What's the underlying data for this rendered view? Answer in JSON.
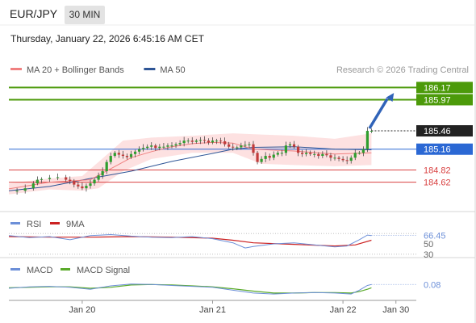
{
  "header": {
    "symbol": "EUR/JPY",
    "timeframe": "30 MIN",
    "datetime": "Thursday, January 22, 2026 6:45:16 AM CET",
    "copyright": "Research © 2026 Trading Central"
  },
  "colors": {
    "ma20": "#f08080",
    "ma50": "#2e5596",
    "candle_up": "#2e9e2e",
    "candle_down": "#c23b3b",
    "band_fill": "#fcd9d9",
    "target_line": "#4c9a0a",
    "pivot_line": "#2b68d4",
    "support_line": "#d94141",
    "arrow": "#3063b8",
    "rsi": "#6c8fd8",
    "rsi_ma": "#cc2222",
    "macd": "#6c8fd8",
    "macd_signal": "#5aaa2a"
  },
  "chart_data": [
    {
      "type": "candlestick",
      "title": "EUR/JPY",
      "legend": [
        {
          "name": "MA 20 + Bollinger Bands",
          "color": "#f08080"
        },
        {
          "name": "MA 50",
          "color": "#2e5596"
        }
      ],
      "ylim": [
        184.35,
        186.32
      ],
      "xlim": [
        0,
        100
      ],
      "x_ticks": [
        {
          "x": 18,
          "label": "Jan 20"
        },
        {
          "x": 50,
          "label": "Jan 21"
        },
        {
          "x": 82,
          "label": "Jan 22"
        },
        {
          "x": 95,
          "label": "Jan 30"
        }
      ],
      "last_close": 185.46,
      "levels": [
        {
          "value": 186.17,
          "label": "186.17",
          "kind": "target",
          "color": "#4c9a0a"
        },
        {
          "value": 185.97,
          "label": "185.97",
          "kind": "target",
          "color": "#4c9a0a"
        },
        {
          "value": 185.46,
          "label": "185.46",
          "kind": "last",
          "color": "#222222"
        },
        {
          "value": 185.16,
          "label": "185.16",
          "kind": "pivot",
          "color": "#2b68d4"
        },
        {
          "value": 184.82,
          "label": "184.82",
          "kind": "support",
          "color": "#d94141"
        },
        {
          "value": 184.62,
          "label": "184.62",
          "kind": "support",
          "color": "#d94141"
        }
      ],
      "arrow": {
        "from": {
          "x": 88.5,
          "y": 185.5
        },
        "to": {
          "x": 94.5,
          "y": 186.08
        }
      },
      "ohlc_close_path": [
        [
          0,
          184.47
        ],
        [
          2,
          184.48
        ],
        [
          4,
          184.52
        ],
        [
          6,
          184.6
        ],
        [
          7,
          184.66
        ],
        [
          8,
          184.67
        ],
        [
          10,
          184.69
        ],
        [
          12,
          184.7
        ],
        [
          14,
          184.66
        ],
        [
          15,
          184.64
        ],
        [
          16,
          184.58
        ],
        [
          17,
          184.55
        ],
        [
          18,
          184.52
        ],
        [
          19,
          184.56
        ],
        [
          20,
          184.6
        ],
        [
          21,
          184.66
        ],
        [
          22,
          184.73
        ],
        [
          23,
          184.8
        ],
        [
          24,
          184.95
        ],
        [
          25,
          185.05
        ],
        [
          26,
          185.1
        ],
        [
          27,
          185.07
        ],
        [
          28,
          185.05
        ],
        [
          29,
          185.03
        ],
        [
          30,
          185.08
        ],
        [
          31,
          185.12
        ],
        [
          32,
          185.16
        ],
        [
          33,
          185.18
        ],
        [
          34,
          185.2
        ],
        [
          35,
          185.22
        ],
        [
          36,
          185.18
        ],
        [
          37,
          185.2
        ],
        [
          38,
          185.2
        ],
        [
          39,
          185.22
        ],
        [
          40,
          185.22
        ],
        [
          41,
          185.24
        ],
        [
          42,
          185.26
        ],
        [
          43,
          185.3
        ],
        [
          44,
          185.3
        ],
        [
          45,
          185.28
        ],
        [
          46,
          185.3
        ],
        [
          47,
          185.31
        ],
        [
          48,
          185.3
        ],
        [
          49,
          185.27
        ],
        [
          50,
          185.3
        ],
        [
          51,
          185.3
        ],
        [
          52,
          185.29
        ],
        [
          53,
          185.24
        ],
        [
          54,
          185.2
        ],
        [
          55,
          185.19
        ],
        [
          56,
          185.19
        ],
        [
          57,
          185.22
        ],
        [
          58,
          185.23
        ],
        [
          59,
          185.24
        ],
        [
          60,
          185.1
        ],
        [
          61,
          184.95
        ],
        [
          62,
          185.0
        ],
        [
          63,
          185.05
        ],
        [
          64,
          185.02
        ],
        [
          65,
          185.07
        ],
        [
          66,
          185.1
        ],
        [
          67,
          185.1
        ],
        [
          68,
          185.22
        ],
        [
          69,
          185.24
        ],
        [
          70,
          185.2
        ],
        [
          71,
          185.1
        ],
        [
          72,
          185.08
        ],
        [
          73,
          185.1
        ],
        [
          74,
          185.08
        ],
        [
          75,
          185.08
        ],
        [
          76,
          185.05
        ],
        [
          77,
          185.08
        ],
        [
          78,
          185.06
        ],
        [
          79,
          185.02
        ],
        [
          80,
          185.02
        ],
        [
          81,
          185.0
        ],
        [
          82,
          184.98
        ],
        [
          83,
          184.97
        ],
        [
          84,
          185.02
        ],
        [
          85,
          185.1
        ],
        [
          86,
          185.1
        ],
        [
          87,
          185.16
        ],
        [
          88,
          185.46
        ],
        [
          89,
          185.46
        ]
      ],
      "ma50_path": [
        [
          0,
          184.48
        ],
        [
          10,
          184.55
        ],
        [
          20,
          184.68
        ],
        [
          30,
          184.8
        ],
        [
          40,
          184.96
        ],
        [
          50,
          185.09
        ],
        [
          55,
          185.16
        ],
        [
          60,
          185.19
        ],
        [
          70,
          185.2
        ],
        [
          80,
          185.16
        ],
        [
          89,
          185.15
        ]
      ],
      "ma20_path": [
        [
          0,
          184.51
        ],
        [
          10,
          184.62
        ],
        [
          20,
          184.66
        ],
        [
          25,
          184.84
        ],
        [
          30,
          185.02
        ],
        [
          35,
          185.12
        ],
        [
          40,
          185.2
        ],
        [
          45,
          185.25
        ],
        [
          50,
          185.27
        ],
        [
          55,
          185.26
        ],
        [
          60,
          185.16
        ],
        [
          70,
          185.13
        ],
        [
          80,
          185.08
        ],
        [
          89,
          185.1
        ]
      ],
      "band_upper": [
        [
          0,
          184.6
        ],
        [
          10,
          184.68
        ],
        [
          18,
          184.72
        ],
        [
          22,
          184.95
        ],
        [
          28,
          185.3
        ],
        [
          35,
          185.35
        ],
        [
          45,
          185.38
        ],
        [
          55,
          185.42
        ],
        [
          62,
          185.4
        ],
        [
          70,
          185.38
        ],
        [
          80,
          185.33
        ],
        [
          89,
          185.42
        ]
      ],
      "band_lower": [
        [
          0,
          184.42
        ],
        [
          10,
          184.5
        ],
        [
          18,
          184.48
        ],
        [
          22,
          184.52
        ],
        [
          28,
          184.8
        ],
        [
          35,
          185.0
        ],
        [
          45,
          185.1
        ],
        [
          55,
          185.1
        ],
        [
          62,
          184.92
        ],
        [
          70,
          184.9
        ],
        [
          80,
          184.88
        ],
        [
          89,
          184.9
        ]
      ]
    },
    {
      "type": "line",
      "title": "RSI",
      "series": [
        {
          "name": "RSI",
          "color": "#6c8fd8"
        },
        {
          "name": "9MA",
          "color": "#cc2222"
        }
      ],
      "ylim": [
        25,
        75
      ],
      "levels": [
        {
          "value": 66.45,
          "label": "66.45",
          "kind": "last"
        },
        {
          "value": 50,
          "label": "50",
          "kind": "guide"
        },
        {
          "value": 30,
          "label": "30",
          "kind": "guide"
        }
      ],
      "rsi_path": [
        [
          0,
          66
        ],
        [
          5,
          62
        ],
        [
          10,
          64
        ],
        [
          15,
          58
        ],
        [
          20,
          66
        ],
        [
          25,
          68
        ],
        [
          30,
          65
        ],
        [
          35,
          63
        ],
        [
          40,
          62
        ],
        [
          45,
          64
        ],
        [
          50,
          60
        ],
        [
          55,
          52
        ],
        [
          58,
          42
        ],
        [
          60,
          45
        ],
        [
          65,
          50
        ],
        [
          70,
          52
        ],
        [
          75,
          48
        ],
        [
          80,
          44
        ],
        [
          83,
          46
        ],
        [
          86,
          58
        ],
        [
          88,
          67
        ],
        [
          89,
          66
        ]
      ],
      "ma_path": [
        [
          0,
          64
        ],
        [
          10,
          63
        ],
        [
          20,
          63
        ],
        [
          30,
          64
        ],
        [
          40,
          63
        ],
        [
          50,
          61
        ],
        [
          55,
          57
        ],
        [
          60,
          52
        ],
        [
          70,
          49
        ],
        [
          80,
          46
        ],
        [
          85,
          48
        ],
        [
          89,
          57
        ]
      ]
    },
    {
      "type": "line",
      "title": "MACD",
      "series": [
        {
          "name": "MACD",
          "color": "#6c8fd8"
        },
        {
          "name": "MACD Signal",
          "color": "#5aaa2a"
        }
      ],
      "ylim": [
        -0.22,
        0.22
      ],
      "levels": [
        {
          "value": 0.08,
          "label": "0.08",
          "kind": "last"
        }
      ],
      "macd_path": [
        [
          0,
          0.0
        ],
        [
          5,
          0.03
        ],
        [
          10,
          0.04
        ],
        [
          15,
          0.02
        ],
        [
          20,
          -0.02
        ],
        [
          25,
          0.05
        ],
        [
          30,
          0.09
        ],
        [
          35,
          0.08
        ],
        [
          40,
          0.06
        ],
        [
          45,
          0.04
        ],
        [
          50,
          0.02
        ],
        [
          55,
          -0.04
        ],
        [
          60,
          -0.1
        ],
        [
          65,
          -0.12
        ],
        [
          70,
          -0.1
        ],
        [
          75,
          -0.09
        ],
        [
          80,
          -0.1
        ],
        [
          84,
          -0.12
        ],
        [
          86,
          -0.04
        ],
        [
          88,
          0.06
        ],
        [
          89,
          0.08
        ]
      ],
      "signal_path": [
        [
          0,
          0.01
        ],
        [
          5,
          0.02
        ],
        [
          10,
          0.03
        ],
        [
          15,
          0.03
        ],
        [
          20,
          0.0
        ],
        [
          25,
          0.02
        ],
        [
          30,
          0.07
        ],
        [
          35,
          0.08
        ],
        [
          40,
          0.07
        ],
        [
          45,
          0.05
        ],
        [
          50,
          0.03
        ],
        [
          55,
          -0.01
        ],
        [
          60,
          -0.06
        ],
        [
          65,
          -0.1
        ],
        [
          70,
          -0.1
        ],
        [
          75,
          -0.09
        ],
        [
          80,
          -0.09
        ],
        [
          84,
          -0.1
        ],
        [
          86,
          -0.07
        ],
        [
          88,
          -0.02
        ],
        [
          89,
          0.01
        ]
      ]
    }
  ]
}
